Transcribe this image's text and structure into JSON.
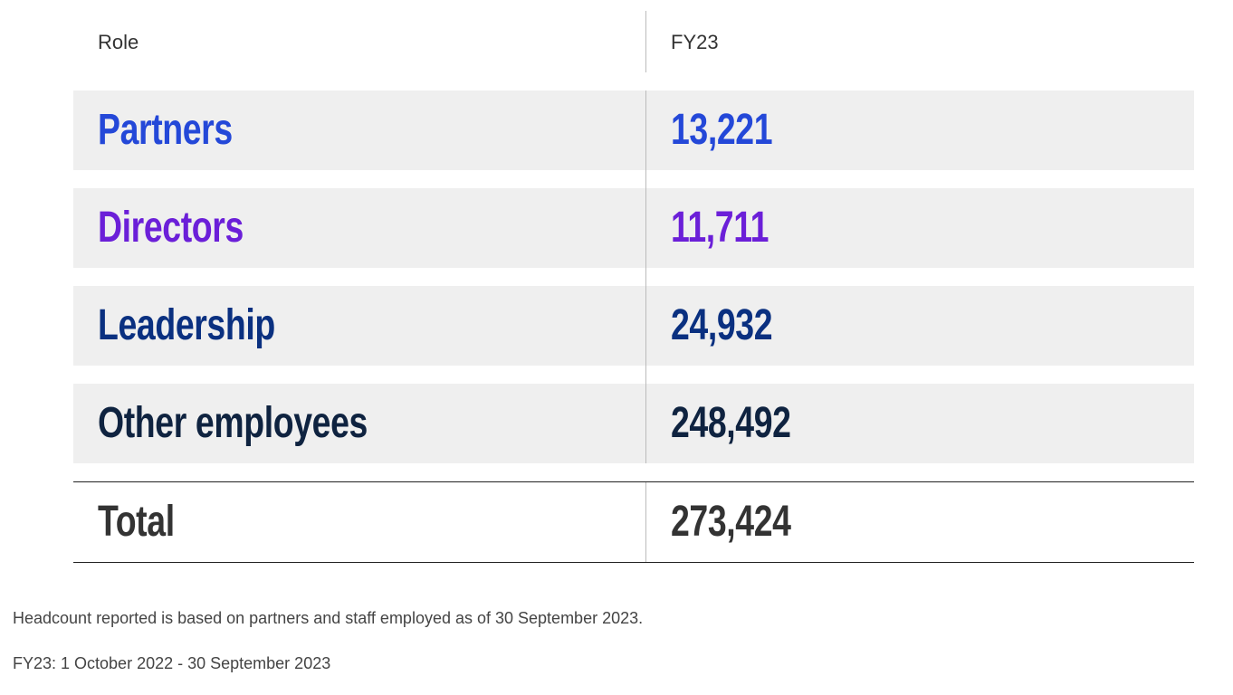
{
  "table": {
    "headers": [
      "Role",
      "FY23"
    ],
    "rows": [
      {
        "role": "Partners",
        "value": "13,221",
        "color": "#2448d8"
      },
      {
        "role": "Directors",
        "value": "11,711",
        "color": "#6b1fd8"
      },
      {
        "role": "Leadership",
        "value": "24,932",
        "color": "#0a3080"
      },
      {
        "role": "Other employees",
        "value": "248,492",
        "color": "#0f2340"
      }
    ],
    "total": {
      "role": "Total",
      "value": "273,424",
      "color": "#333333"
    }
  },
  "notes": [
    "Headcount reported is based on partners and staff employed as of 30 September 2023.",
    "FY23: 1 October 2022 - 30 September 2023"
  ]
}
